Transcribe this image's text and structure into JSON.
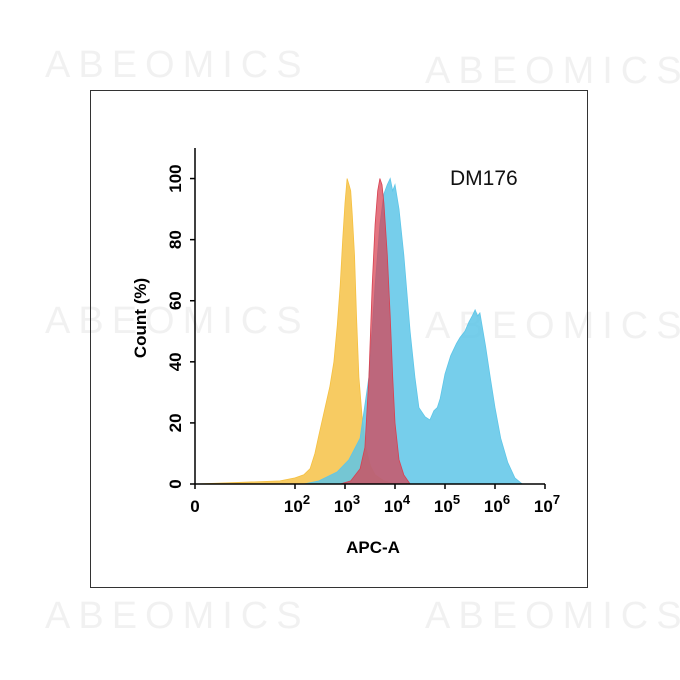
{
  "watermark_text": "ABEOMICS",
  "chart_data": {
    "type": "area",
    "title": "DM176",
    "xlabel": "APC-A",
    "ylabel": "Count (%)",
    "x_scale": "log",
    "xlim": [
      1,
      10000000
    ],
    "ylim": [
      0,
      110
    ],
    "grid": false,
    "x_ticks": [
      {
        "value": 1,
        "base": "0",
        "exp": ""
      },
      {
        "value": 100,
        "base": "10",
        "exp": "2"
      },
      {
        "value": 1000,
        "base": "10",
        "exp": "3"
      },
      {
        "value": 10000,
        "base": "10",
        "exp": "4"
      },
      {
        "value": 100000,
        "base": "10",
        "exp": "5"
      },
      {
        "value": 1000000,
        "base": "10",
        "exp": "6"
      },
      {
        "value": 10000000,
        "base": "10",
        "exp": "7"
      }
    ],
    "y_ticks": [
      0,
      20,
      40,
      60,
      80,
      100
    ],
    "series": [
      {
        "color": "#f5c040",
        "opacity": 0.82,
        "points": [
          [
            1,
            0
          ],
          [
            50,
            1
          ],
          [
            100,
            2
          ],
          [
            150,
            3
          ],
          [
            200,
            5
          ],
          [
            250,
            10
          ],
          [
            300,
            16
          ],
          [
            400,
            25
          ],
          [
            500,
            32
          ],
          [
            600,
            40
          ],
          [
            700,
            52
          ],
          [
            800,
            65
          ],
          [
            900,
            80
          ],
          [
            1000,
            92
          ],
          [
            1100,
            100
          ],
          [
            1200,
            98
          ],
          [
            1300,
            96
          ],
          [
            1400,
            88
          ],
          [
            1550,
            75
          ],
          [
            1700,
            55
          ],
          [
            1900,
            35
          ],
          [
            2200,
            22
          ],
          [
            2600,
            12
          ],
          [
            3200,
            6
          ],
          [
            4000,
            3
          ],
          [
            6000,
            1
          ],
          [
            10000,
            0
          ]
        ]
      },
      {
        "color": "#5ec6e8",
        "opacity": 0.85,
        "points": [
          [
            150,
            0
          ],
          [
            300,
            1
          ],
          [
            700,
            4
          ],
          [
            1200,
            8
          ],
          [
            2000,
            15
          ],
          [
            3000,
            35
          ],
          [
            4000,
            65
          ],
          [
            5000,
            85
          ],
          [
            6000,
            95
          ],
          [
            7000,
            98
          ],
          [
            8000,
            100
          ],
          [
            9000,
            96
          ],
          [
            10000,
            98
          ],
          [
            12000,
            90
          ],
          [
            15000,
            75
          ],
          [
            20000,
            50
          ],
          [
            25000,
            35
          ],
          [
            30000,
            25
          ],
          [
            40000,
            22
          ],
          [
            50000,
            21
          ],
          [
            60000,
            24
          ],
          [
            70000,
            25
          ],
          [
            80000,
            28
          ],
          [
            100000,
            36
          ],
          [
            130000,
            42
          ],
          [
            170000,
            46
          ],
          [
            200000,
            48
          ],
          [
            250000,
            50
          ],
          [
            300000,
            53
          ],
          [
            350000,
            55
          ],
          [
            400000,
            57
          ],
          [
            450000,
            55
          ],
          [
            500000,
            56
          ],
          [
            550000,
            52
          ],
          [
            650000,
            45
          ],
          [
            800000,
            35
          ],
          [
            1000000,
            25
          ],
          [
            1300000,
            15
          ],
          [
            1800000,
            7
          ],
          [
            2500000,
            2
          ],
          [
            3500000,
            0
          ]
        ]
      },
      {
        "color": "#d84050",
        "opacity": 0.72,
        "points": [
          [
            800,
            0
          ],
          [
            1300,
            1
          ],
          [
            2000,
            5
          ],
          [
            2500,
            12
          ],
          [
            3000,
            35
          ],
          [
            3500,
            65
          ],
          [
            4000,
            85
          ],
          [
            4500,
            96
          ],
          [
            5000,
            100
          ],
          [
            5500,
            98
          ],
          [
            6000,
            92
          ],
          [
            7000,
            75
          ],
          [
            8000,
            55
          ],
          [
            9000,
            35
          ],
          [
            10000,
            20
          ],
          [
            12000,
            8
          ],
          [
            15000,
            3
          ],
          [
            20000,
            0
          ]
        ]
      }
    ]
  }
}
